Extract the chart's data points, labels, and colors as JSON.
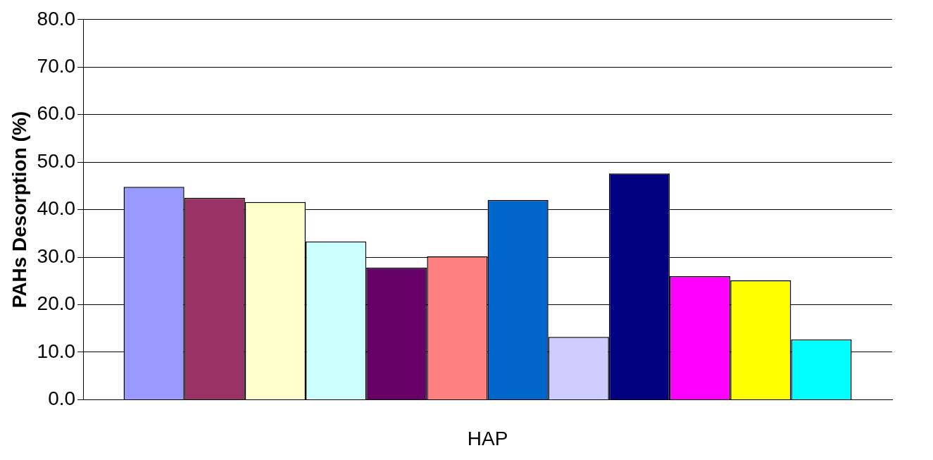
{
  "chart_data": {
    "type": "bar",
    "xlabel": "HAP",
    "ylabel": "PAHs Desorption (%)",
    "categories": [
      null
    ],
    "series": [
      {
        "color": "#9999ff",
        "values": [
          44.8
        ]
      },
      {
        "color": "#993366",
        "values": [
          42.5
        ]
      },
      {
        "color": "#ffffcc",
        "values": [
          41.6
        ]
      },
      {
        "color": "#ccffff",
        "values": [
          33.3
        ]
      },
      {
        "color": "#660066",
        "values": [
          27.8
        ]
      },
      {
        "color": "#ff8080",
        "values": [
          30.2
        ]
      },
      {
        "color": "#0066cc",
        "values": [
          42.0
        ]
      },
      {
        "color": "#ccccff",
        "values": [
          13.2
        ]
      },
      {
        "color": "#000080",
        "values": [
          47.6
        ]
      },
      {
        "color": "#ff00ff",
        "values": [
          26.0
        ]
      },
      {
        "color": "#ffff00",
        "values": [
          25.1
        ]
      },
      {
        "color": "#00ffff",
        "values": [
          12.7
        ]
      }
    ],
    "ylim": [
      0,
      80
    ],
    "yticks": [
      {
        "value": 0,
        "label": "0.0"
      },
      {
        "value": 10,
        "label": "10.0"
      },
      {
        "value": 20,
        "label": "20.0"
      },
      {
        "value": 30,
        "label": "30.0"
      },
      {
        "value": 40,
        "label": "40.0"
      },
      {
        "value": 50,
        "label": "50.0"
      },
      {
        "value": 60,
        "label": "60.0"
      },
      {
        "value": 70,
        "label": "70.0"
      },
      {
        "value": 80,
        "label": "80.0"
      }
    ],
    "grid": "y",
    "legend": false,
    "tick_labels": "y"
  }
}
